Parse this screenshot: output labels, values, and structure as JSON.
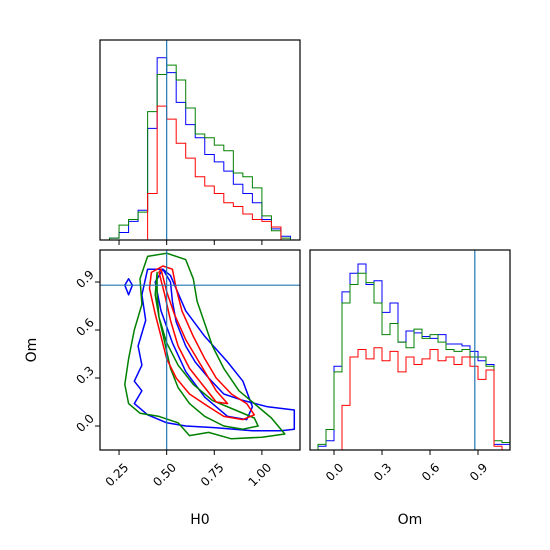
{
  "chart_data": {
    "type": "corner",
    "parameters": [
      "H0",
      "Om"
    ],
    "truth": {
      "H0": 0.5,
      "Om": 0.88
    },
    "truth_color": "#1f77b4",
    "series": [
      {
        "color": "#0000ff"
      },
      {
        "color": "#008000"
      },
      {
        "color": "#ff0000"
      }
    ],
    "panels": [
      {
        "id": "hist-h0",
        "type": "histogram",
        "param": "H0",
        "xlim": [
          0.15,
          1.2
        ],
        "ylim": [
          0,
          1.0
        ],
        "x_ticks": [
          0.25,
          0.5,
          0.75,
          1.0
        ],
        "x_tick_labels": [],
        "series": [
          {
            "bin_edges": [
              0.15,
              0.2,
              0.25,
              0.3,
              0.35,
              0.4,
              0.45,
              0.5,
              0.55,
              0.6,
              0.65,
              0.7,
              0.75,
              0.8,
              0.85,
              0.9,
              0.95,
              1.0,
              1.05,
              1.1,
              1.15,
              1.2
            ],
            "heights": [
              0,
              0.01,
              0.04,
              0.1,
              0.16,
              0.6,
              0.98,
              0.9,
              0.74,
              0.62,
              0.55,
              0.46,
              0.42,
              0.37,
              0.3,
              0.25,
              0.2,
              0.11,
              0.06,
              0.02,
              0
            ]
          },
          {
            "bin_edges": [
              0.15,
              0.2,
              0.25,
              0.3,
              0.35,
              0.4,
              0.45,
              0.5,
              0.55,
              0.6,
              0.65,
              0.7,
              0.75,
              0.8,
              0.85,
              0.9,
              0.95,
              1.0,
              1.05,
              1.1,
              1.15,
              1.2
            ],
            "heights": [
              0,
              0.01,
              0.08,
              0.11,
              0.15,
              0.69,
              0.89,
              0.94,
              0.86,
              0.71,
              0.57,
              0.55,
              0.51,
              0.48,
              0.36,
              0.34,
              0.28,
              0.13,
              0.05,
              0.01,
              0
            ]
          },
          {
            "bin_edges": [
              0.4,
              0.45,
              0.5,
              0.55,
              0.6,
              0.65,
              0.7,
              0.75,
              0.8,
              0.85,
              0.9,
              0.95,
              1.0,
              1.05,
              1.1
            ],
            "heights": [
              0.25,
              0.72,
              0.65,
              0.52,
              0.44,
              0.34,
              0.29,
              0.25,
              0.2,
              0.18,
              0.14,
              0.11,
              0.1,
              0.07,
              0
            ]
          }
        ]
      },
      {
        "id": "contour-h0-om",
        "type": "contour",
        "x_param": "H0",
        "y_param": "Om",
        "xlim": [
          0.15,
          1.2
        ],
        "ylim": [
          -0.15,
          1.1
        ],
        "x_ticks": [
          0.25,
          0.5,
          0.75,
          1.0
        ],
        "x_tick_labels": [
          "0.25",
          "0.50",
          "0.75",
          "1.00"
        ],
        "y_ticks": [
          0.0,
          0.3,
          0.6,
          0.9
        ],
        "y_tick_labels": [
          "0.0",
          "0.3",
          "0.6",
          "0.9"
        ],
        "xlabel": "H0",
        "ylabel": "Om",
        "series": [
          {
            "contours": [
              [
                [
                  0.52,
                  0.94
                ],
                [
                  0.6,
                  0.72
                ],
                [
                  0.7,
                  0.56
                ],
                [
                  0.82,
                  0.4
                ],
                [
                  0.9,
                  0.28
                ],
                [
                  0.95,
                  0.12
                ],
                [
                  0.92,
                  0.04
                ],
                [
                  0.82,
                  0.06
                ],
                [
                  0.7,
                  0.18
                ],
                [
                  0.6,
                  0.34
                ],
                [
                  0.53,
                  0.52
                ],
                [
                  0.47,
                  0.72
                ],
                [
                  0.44,
                  0.9
                ],
                [
                  0.48,
                  0.98
                ]
              ],
              [
                [
                  0.4,
                  0.98
                ],
                [
                  0.37,
                  0.82
                ],
                [
                  0.39,
                  0.66
                ],
                [
                  0.35,
                  0.5
                ],
                [
                  0.37,
                  0.38
                ],
                [
                  0.33,
                  0.28
                ],
                [
                  0.37,
                  0.22
                ],
                [
                  0.33,
                  0.14
                ],
                [
                  0.4,
                  0.07
                ],
                [
                  0.5,
                  0.02
                ],
                [
                  0.6,
                  0.0
                ],
                [
                  0.75,
                  -0.01
                ],
                [
                  0.95,
                  -0.03
                ],
                [
                  1.1,
                  -0.03
                ],
                [
                  1.17,
                  -0.02
                ],
                [
                  1.17,
                  0.1
                ],
                [
                  1.03,
                  0.12
                ],
                [
                  0.9,
                  0.16
                ],
                [
                  0.8,
                  0.2
                ],
                [
                  0.72,
                  0.3
                ],
                [
                  0.65,
                  0.4
                ],
                [
                  0.6,
                  0.5
                ],
                [
                  0.55,
                  0.65
                ],
                [
                  0.53,
                  0.78
                ],
                [
                  0.52,
                  0.9
                ],
                [
                  0.48,
                  0.98
                ]
              ],
              [
                [
                  0.32,
                  0.88
                ],
                [
                  0.3,
                  0.82
                ],
                [
                  0.28,
                  0.88
                ],
                [
                  0.3,
                  0.92
                ]
              ]
            ]
          },
          {
            "contours": [
              [
                [
                  0.45,
                  0.96
                ],
                [
                  0.44,
                  0.82
                ],
                [
                  0.46,
                  0.68
                ],
                [
                  0.5,
                  0.52
                ],
                [
                  0.56,
                  0.38
                ],
                [
                  0.64,
                  0.26
                ],
                [
                  0.74,
                  0.16
                ],
                [
                  0.86,
                  0.1
                ],
                [
                  0.96,
                  0.05
                ],
                [
                  0.98,
                  0.0
                ],
                [
                  0.9,
                  -0.02
                ],
                [
                  0.8,
                  0.0
                ],
                [
                  0.7,
                  0.06
                ],
                [
                  0.62,
                  0.14
                ],
                [
                  0.56,
                  0.24
                ],
                [
                  0.52,
                  0.36
                ],
                [
                  0.49,
                  0.52
                ],
                [
                  0.46,
                  0.68
                ],
                [
                  0.45,
                  0.82
                ]
              ],
              [
                [
                  0.5,
                  1.08
                ],
                [
                  0.4,
                  1.06
                ],
                [
                  0.36,
                  0.92
                ],
                [
                  0.37,
                  0.76
                ],
                [
                  0.33,
                  0.6
                ],
                [
                  0.3,
                  0.42
                ],
                [
                  0.28,
                  0.26
                ],
                [
                  0.3,
                  0.14
                ],
                [
                  0.36,
                  0.08
                ],
                [
                  0.46,
                  0.06
                ],
                [
                  0.56,
                  0.02
                ],
                [
                  0.62,
                  -0.06
                ],
                [
                  0.72,
                  -0.04
                ],
                [
                  0.84,
                  -0.08
                ],
                [
                  1.0,
                  -0.07
                ],
                [
                  1.12,
                  -0.05
                ],
                [
                  1.05,
                  0.05
                ],
                [
                  0.96,
                  0.14
                ],
                [
                  0.88,
                  0.22
                ],
                [
                  0.8,
                  0.36
                ],
                [
                  0.74,
                  0.5
                ],
                [
                  0.7,
                  0.64
                ],
                [
                  0.66,
                  0.78
                ],
                [
                  0.64,
                  0.92
                ],
                [
                  0.6,
                  1.04
                ]
              ]
            ]
          },
          {
            "contours": [
              [
                [
                  0.47,
                  0.98
                ],
                [
                  0.5,
                  0.84
                ],
                [
                  0.54,
                  0.7
                ],
                [
                  0.6,
                  0.54
                ],
                [
                  0.68,
                  0.38
                ],
                [
                  0.76,
                  0.22
                ],
                [
                  0.82,
                  0.14
                ],
                [
                  0.76,
                  0.15
                ],
                [
                  0.7,
                  0.24
                ],
                [
                  0.62,
                  0.36
                ],
                [
                  0.56,
                  0.5
                ],
                [
                  0.52,
                  0.66
                ],
                [
                  0.49,
                  0.82
                ],
                [
                  0.46,
                  0.96
                ]
              ],
              [
                [
                  0.48,
                  1.0
                ],
                [
                  0.42,
                  0.96
                ],
                [
                  0.41,
                  0.86
                ],
                [
                  0.44,
                  0.7
                ],
                [
                  0.47,
                  0.56
                ],
                [
                  0.5,
                  0.42
                ],
                [
                  0.55,
                  0.3
                ],
                [
                  0.62,
                  0.2
                ],
                [
                  0.72,
                  0.12
                ],
                [
                  0.8,
                  0.06
                ],
                [
                  0.9,
                  0.04
                ],
                [
                  0.96,
                  0.07
                ],
                [
                  0.92,
                  0.14
                ],
                [
                  0.84,
                  0.2
                ],
                [
                  0.76,
                  0.3
                ],
                [
                  0.7,
                  0.42
                ],
                [
                  0.64,
                  0.56
                ],
                [
                  0.58,
                  0.72
                ],
                [
                  0.55,
                  0.86
                ],
                [
                  0.53,
                  0.98
                ]
              ]
            ]
          }
        ]
      },
      {
        "id": "hist-om",
        "type": "histogram",
        "param": "Om",
        "xlim": [
          -0.15,
          1.1
        ],
        "ylim": [
          0,
          1.0
        ],
        "x_ticks": [
          0.0,
          0.3,
          0.6,
          0.9
        ],
        "x_tick_labels": [
          "0.0",
          "0.3",
          "0.6",
          "0.9"
        ],
        "xlabel": "Om",
        "series": [
          {
            "bin_edges": [
              -0.1,
              -0.05,
              0.0,
              0.05,
              0.1,
              0.15,
              0.2,
              0.25,
              0.3,
              0.35,
              0.4,
              0.45,
              0.5,
              0.55,
              0.6,
              0.65,
              0.7,
              0.75,
              0.8,
              0.85,
              0.9,
              0.95,
              1.0,
              1.05,
              1.1
            ],
            "heights": [
              0.02,
              0.05,
              0.45,
              0.85,
              0.95,
              1.0,
              0.89,
              0.91,
              0.74,
              0.79,
              0.58,
              0.64,
              0.63,
              0.61,
              0.6,
              0.62,
              0.57,
              0.57,
              0.56,
              0.53,
              0.48,
              0.46,
              0.03,
              0.03
            ]
          },
          {
            "bin_edges": [
              -0.1,
              -0.05,
              0.0,
              0.05,
              0.1,
              0.15,
              0.2,
              0.25,
              0.3,
              0.35,
              0.4,
              0.45,
              0.5,
              0.55,
              0.6,
              0.65,
              0.7,
              0.75,
              0.8,
              0.85,
              0.9,
              0.95,
              1.0,
              1.05,
              1.1
            ],
            "heights": [
              0.03,
              0.11,
              0.42,
              0.79,
              0.89,
              0.95,
              0.9,
              0.79,
              0.62,
              0.68,
              0.58,
              0.55,
              0.65,
              0.6,
              0.62,
              0.58,
              0.54,
              0.53,
              0.54,
              0.5,
              0.5,
              0.45,
              0.05,
              0.04
            ]
          },
          {
            "bin_edges": [
              0.05,
              0.1,
              0.15,
              0.2,
              0.25,
              0.3,
              0.35,
              0.4,
              0.45,
              0.5,
              0.55,
              0.6,
              0.65,
              0.7,
              0.75,
              0.8,
              0.85,
              0.9,
              0.95,
              1.0,
              1.05,
              1.1
            ],
            "heights": [
              0.24,
              0.5,
              0.54,
              0.49,
              0.55,
              0.48,
              0.53,
              0.42,
              0.5,
              0.46,
              0.49,
              0.54,
              0.48,
              0.5,
              0.46,
              0.5,
              0.45,
              0.38,
              0.43,
              0.02,
              0
            ]
          }
        ]
      }
    ]
  }
}
